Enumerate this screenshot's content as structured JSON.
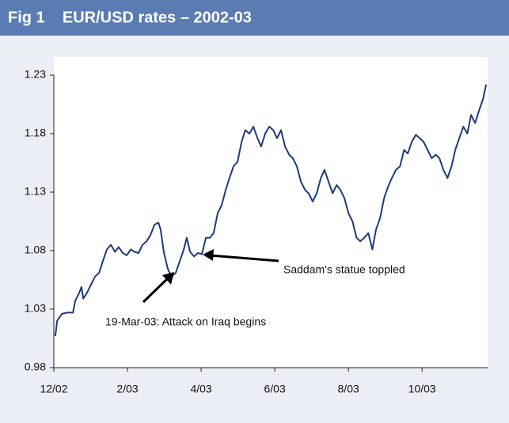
{
  "chart_data": {
    "type": "line",
    "title": "Fig 1    EUR/USD rates – 2002-03",
    "x": [
      0.04,
      0.09,
      0.22,
      0.37,
      0.52,
      0.58,
      0.69,
      0.75,
      0.8,
      0.9,
      1.01,
      1.12,
      1.23,
      1.33,
      1.44,
      1.55,
      1.66,
      1.76,
      1.87,
      1.98,
      2.09,
      2.19,
      2.3,
      2.41,
      2.52,
      2.62,
      2.73,
      2.84,
      2.9,
      2.99,
      3.1,
      3.2,
      3.31,
      3.42,
      3.53,
      3.61,
      3.7,
      3.81,
      3.91,
      4.02,
      4.13,
      4.24,
      4.34,
      4.45,
      4.56,
      4.67,
      4.77,
      4.88,
      4.99,
      5.1,
      5.2,
      5.31,
      5.42,
      5.53,
      5.63,
      5.74,
      5.85,
      5.96,
      6.06,
      6.17,
      6.28,
      6.39,
      6.49,
      6.6,
      6.71,
      6.82,
      6.92,
      7.03,
      7.14,
      7.25,
      7.35,
      7.46,
      7.57,
      7.68,
      7.78,
      7.89,
      8.0,
      8.11,
      8.22,
      8.32,
      8.43,
      8.54,
      8.65,
      8.75,
      8.86,
      8.97,
      9.08,
      9.18,
      9.29,
      9.4,
      9.51,
      9.61,
      9.72,
      9.83,
      9.94,
      10.04,
      10.15,
      10.26,
      10.37,
      10.47,
      10.58,
      10.69,
      10.8,
      10.9,
      11.01,
      11.12,
      11.23,
      11.33,
      11.44,
      11.55,
      11.66,
      11.74
    ],
    "series": [
      {
        "name": "EUR/USD",
        "color": "#1f3a7a",
        "values": [
          1.007,
          1.02,
          1.026,
          1.027,
          1.027,
          1.037,
          1.044,
          1.049,
          1.039,
          1.044,
          1.051,
          1.058,
          1.061,
          1.071,
          1.081,
          1.085,
          1.079,
          1.083,
          1.078,
          1.076,
          1.081,
          1.079,
          1.078,
          1.085,
          1.088,
          1.093,
          1.102,
          1.104,
          1.098,
          1.078,
          1.064,
          1.058,
          1.061,
          1.071,
          1.081,
          1.091,
          1.079,
          1.075,
          1.078,
          1.077,
          1.091,
          1.091,
          1.095,
          1.112,
          1.119,
          1.132,
          1.142,
          1.152,
          1.156,
          1.173,
          1.183,
          1.18,
          1.186,
          1.176,
          1.169,
          1.18,
          1.186,
          1.183,
          1.176,
          1.183,
          1.169,
          1.162,
          1.159,
          1.152,
          1.139,
          1.132,
          1.129,
          1.122,
          1.129,
          1.142,
          1.149,
          1.139,
          1.129,
          1.136,
          1.132,
          1.125,
          1.112,
          1.105,
          1.091,
          1.088,
          1.091,
          1.095,
          1.081,
          1.098,
          1.108,
          1.125,
          1.135,
          1.142,
          1.149,
          1.152,
          1.166,
          1.163,
          1.173,
          1.179,
          1.176,
          1.173,
          1.166,
          1.159,
          1.162,
          1.159,
          1.149,
          1.142,
          1.152,
          1.166,
          1.176,
          1.186,
          1.18,
          1.196,
          1.189,
          1.2,
          1.21,
          1.222
        ]
      }
    ],
    "xlim": [
      0,
      11.78
    ],
    "xticks": [
      {
        "value": 0,
        "label": "12/02"
      },
      {
        "value": 2,
        "label": "2/03"
      },
      {
        "value": 4,
        "label": "4/03"
      },
      {
        "value": 6,
        "label": "6/03"
      },
      {
        "value": 8,
        "label": "8/03"
      },
      {
        "value": 10,
        "label": "10/03"
      }
    ],
    "ylim": [
      0.98,
      1.23
    ],
    "yticks": [
      0.98,
      1.03,
      1.08,
      1.13,
      1.18,
      1.23
    ],
    "annotations": [
      "Saddam's statue toppled",
      "19-Mar-03: Attack on Iraq begins"
    ]
  }
}
